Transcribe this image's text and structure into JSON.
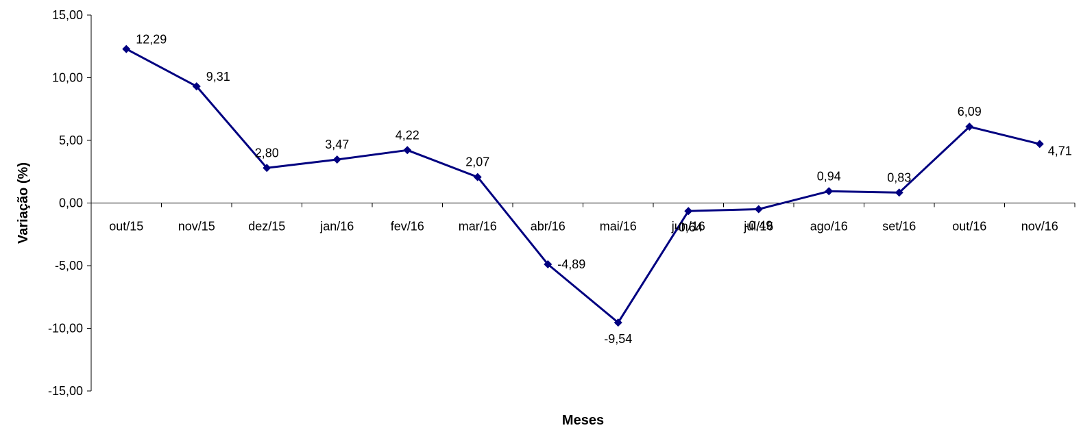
{
  "chart_data": {
    "type": "line",
    "title": "",
    "xlabel": "Meses",
    "ylabel": "Variação (%)",
    "ylim": [
      -15,
      15
    ],
    "y_ticks": [
      {
        "value": -15,
        "label": "-15,00"
      },
      {
        "value": -10,
        "label": "-10,00"
      },
      {
        "value": -5,
        "label": "-5,00"
      },
      {
        "value": 0,
        "label": "0,00"
      },
      {
        "value": 5,
        "label": "5,00"
      },
      {
        "value": 10,
        "label": "10,00"
      },
      {
        "value": 15,
        "label": "15,00"
      }
    ],
    "categories": [
      "out/15",
      "nov/15",
      "dez/15",
      "jan/16",
      "fev/16",
      "mar/16",
      "abr/16",
      "mai/16",
      "jun/16",
      "jul/16",
      "ago/16",
      "set/16",
      "out/16",
      "nov/16"
    ],
    "series": [
      {
        "values": [
          12.29,
          9.31,
          2.8,
          3.47,
          4.22,
          2.07,
          -4.89,
          -9.54,
          -0.64,
          -0.49,
          0.94,
          0.83,
          6.09,
          4.71
        ],
        "labels": [
          "12,29",
          "9,31",
          "2,80",
          "3,47",
          "4,22",
          "2,07",
          "-4,89",
          "-9,54",
          "-0,64",
          "-0,49",
          "0,94",
          "0,83",
          "6,09",
          "4,71"
        ],
        "color": "#000080"
      }
    ],
    "grid": false,
    "legend": "none"
  }
}
